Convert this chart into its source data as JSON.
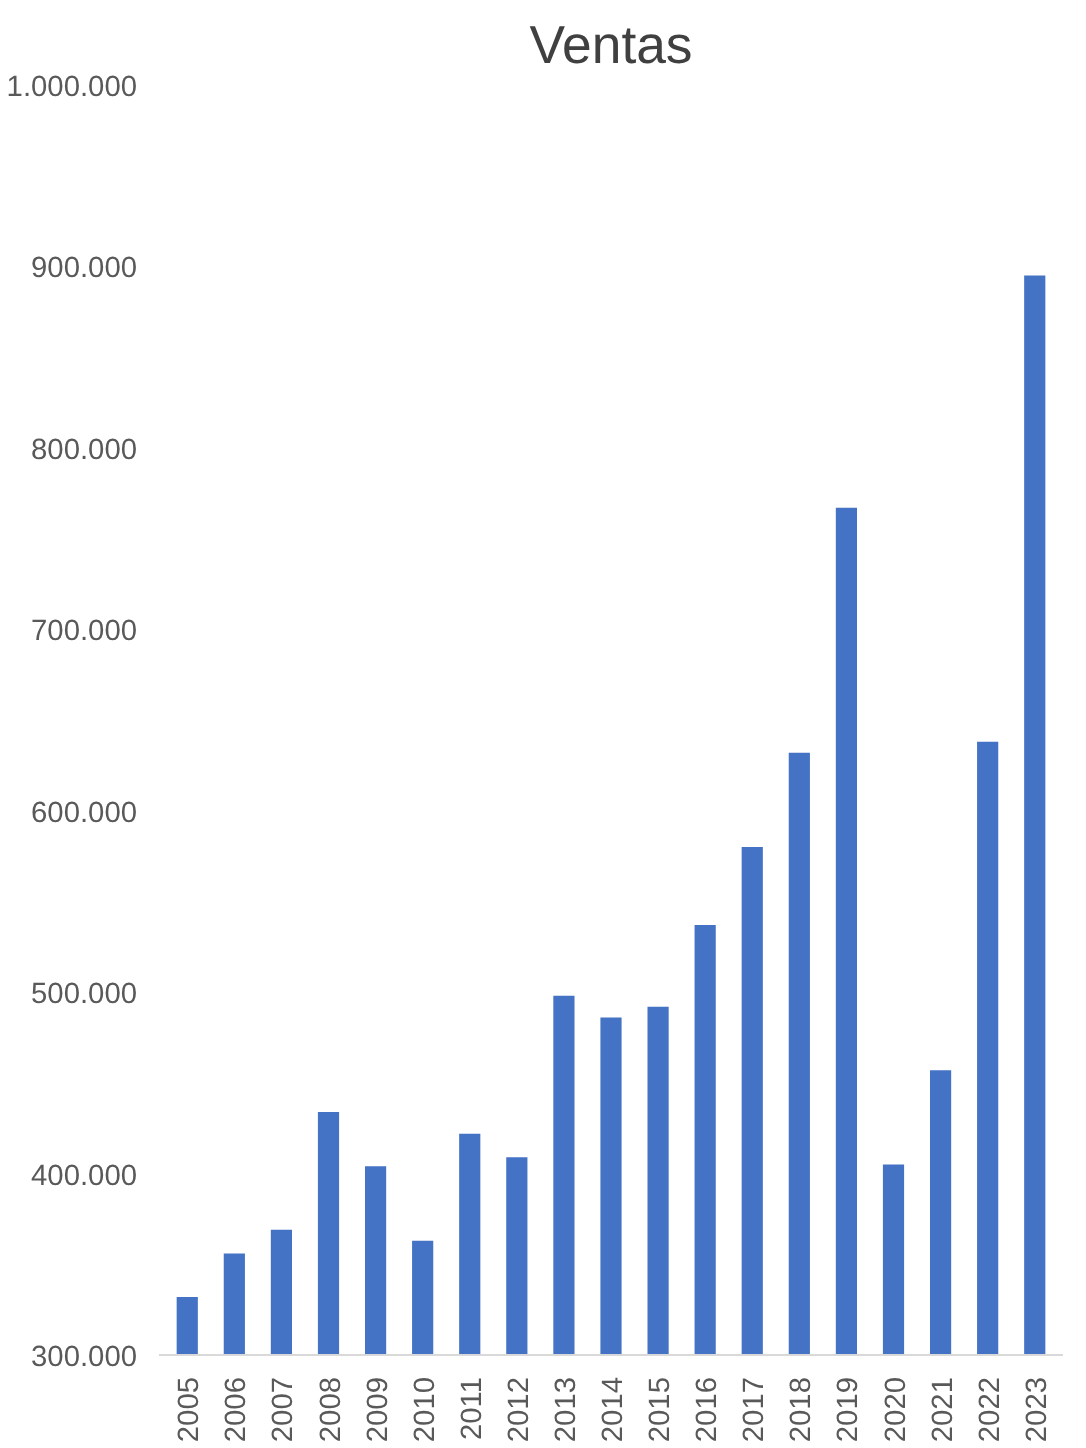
{
  "chart_data": {
    "type": "bar",
    "title": "Ventas",
    "categories": [
      "2005",
      "2006",
      "2007",
      "2008",
      "2009",
      "2010",
      "2011",
      "2012",
      "2013",
      "2014",
      "2015",
      "2016",
      "2017",
      "2018",
      "2019",
      "2020",
      "2021",
      "2022",
      "2023"
    ],
    "values": [
      332000,
      356000,
      369000,
      434000,
      404000,
      363000,
      422000,
      409000,
      498000,
      486000,
      492000,
      537000,
      580000,
      632000,
      767000,
      405000,
      457000,
      638000,
      895000
    ],
    "color": "#4472c4",
    "ylim": [
      300000,
      1000000
    ],
    "yticks": [
      {
        "value": 300000,
        "label": "300.000"
      },
      {
        "value": 400000,
        "label": "400.000"
      },
      {
        "value": 500000,
        "label": "500.000"
      },
      {
        "value": 600000,
        "label": "600.000"
      },
      {
        "value": 700000,
        "label": "700.000"
      },
      {
        "value": 800000,
        "label": "800.000"
      },
      {
        "value": 900000,
        "label": "900.000"
      },
      {
        "value": 1000000,
        "label": "1.000.000"
      }
    ],
    "grid": false
  }
}
